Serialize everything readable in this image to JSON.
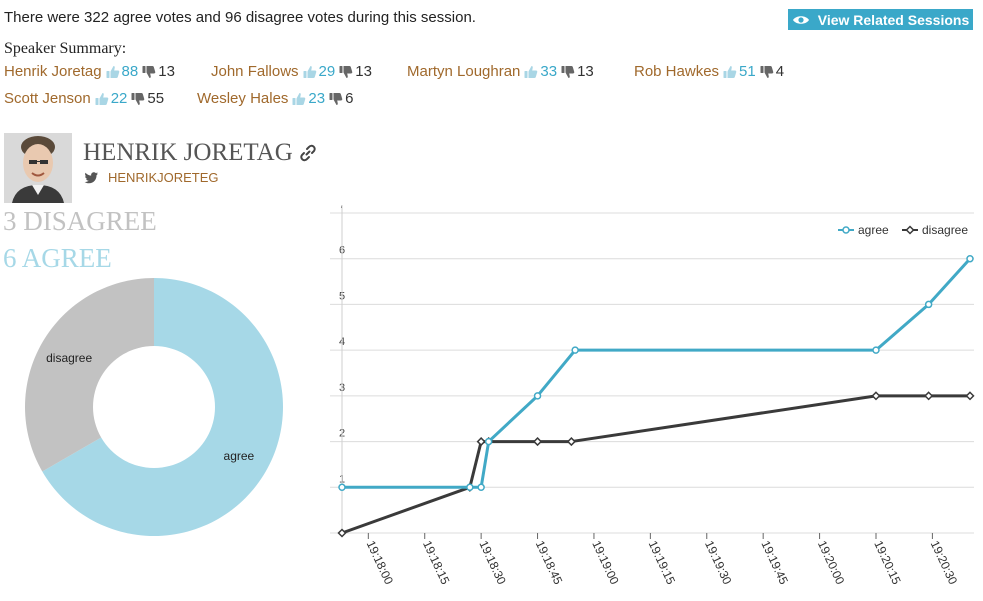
{
  "session": {
    "summary": "There were 322 agree votes and 96 disagree votes during this session.",
    "view_related_label": "View Related Sessions"
  },
  "speaker_summary": {
    "title": "Speaker Summary:",
    "speakers": [
      {
        "name": "Henrik Joretag",
        "agree": "88",
        "disagree": "13"
      },
      {
        "name": "John Fallows",
        "agree": "29",
        "disagree": "13"
      },
      {
        "name": "Martyn Loughran",
        "agree": "33",
        "disagree": "13"
      },
      {
        "name": "Rob Hawkes",
        "agree": "51",
        "disagree": "4"
      },
      {
        "name": "Scott Jenson",
        "agree": "22",
        "disagree": "55"
      },
      {
        "name": "Wesley Hales",
        "agree": "23",
        "disagree": "6"
      }
    ]
  },
  "profile": {
    "name": "HENRIK JORETAG",
    "twitter_handle": "HENRIKJORETEG",
    "disagree_summary": "3 DISAGREE",
    "agree_summary": "6 AGREE"
  },
  "colors": {
    "agree": "#41a9c6",
    "disagree": "#3a3a3a",
    "donut_agree": "#a6d8e7",
    "donut_disagree": "#c2c2c2",
    "speaker_name": "#a0692c",
    "button": "#3aa8c9"
  },
  "chart_data": [
    {
      "type": "pie",
      "variant": "donut",
      "labels": [
        "agree",
        "disagree"
      ],
      "values": [
        6,
        3
      ]
    },
    {
      "type": "line",
      "legend_position": "top-right",
      "grid": true,
      "ylim": [
        0,
        7
      ],
      "yticks": [
        "1",
        "2",
        "3",
        "4",
        "5",
        "6",
        "7"
      ],
      "xlim": [
        "19:17:53",
        "19:20:40"
      ],
      "xticks": [
        "19:18:00",
        "19:18:15",
        "19:18:30",
        "19:18:45",
        "19:19:00",
        "19:19:15",
        "19:19:30",
        "19:19:45",
        "19:20:00",
        "19:20:15",
        "19:20:30"
      ],
      "series": [
        {
          "name": "agree",
          "x": [
            "19:17:53",
            "19:18:27",
            "19:18:30",
            "19:18:32",
            "19:18:45",
            "19:18:55",
            "19:20:15",
            "19:20:29",
            "19:20:40"
          ],
          "y": [
            1,
            1,
            1,
            2,
            3,
            4,
            4,
            5,
            6
          ]
        },
        {
          "name": "disagree",
          "x": [
            "19:17:53",
            "19:18:27",
            "19:18:30",
            "19:18:32",
            "19:18:45",
            "19:18:54",
            "19:20:15",
            "19:20:29",
            "19:20:40"
          ],
          "y": [
            0,
            1,
            2,
            2,
            2,
            2,
            3,
            3,
            3
          ]
        }
      ]
    }
  ]
}
